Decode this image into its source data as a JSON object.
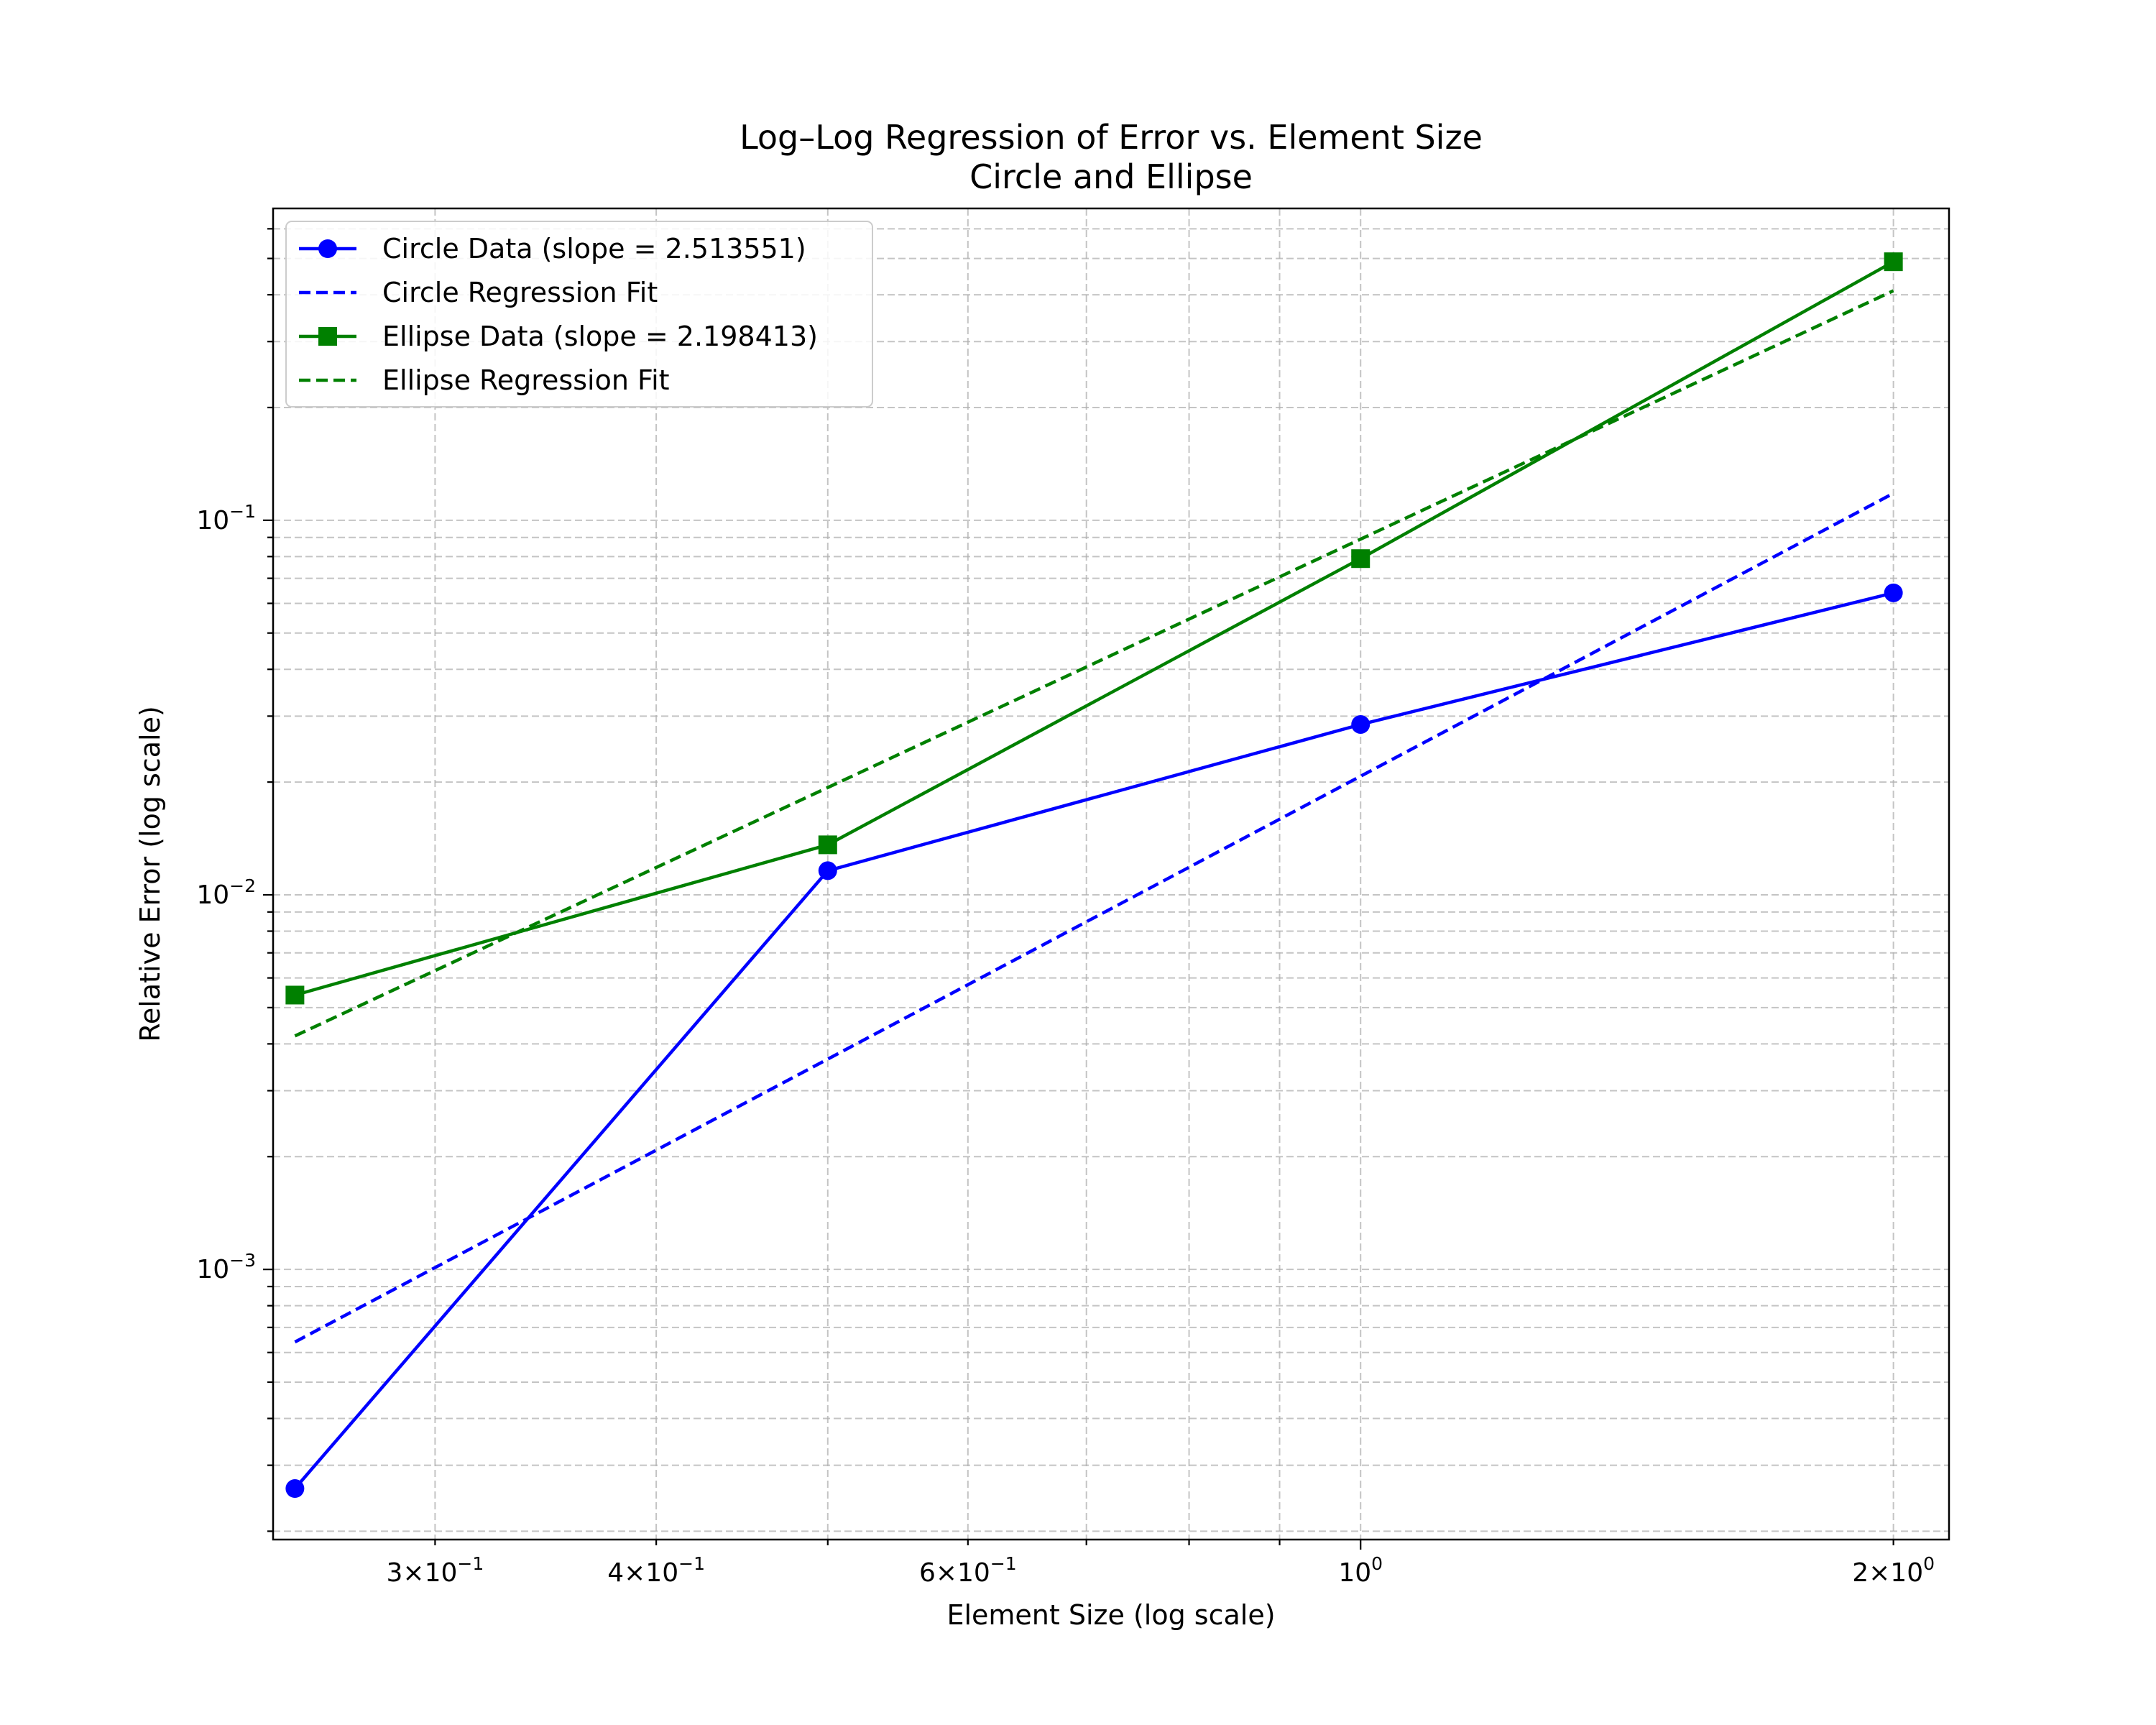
{
  "chart_data": {
    "type": "line",
    "title": "Log–Log Regression of Error vs. Element Size",
    "subtitle": "Circle and Ellipse",
    "xlabel": "Element Size (log scale)",
    "ylabel": "Relative Error (log scale)",
    "xscale": "log",
    "yscale": "log",
    "xlim": [
      0.243,
      2.15
    ],
    "ylim": [
      0.00019,
      0.68
    ],
    "grid": true,
    "legend_position": "top-left",
    "x_ticks": [
      {
        "value": 0.3,
        "base": "3×10",
        "exp": "−1"
      },
      {
        "value": 0.4,
        "base": "4×10",
        "exp": "−1"
      },
      {
        "value": 0.6,
        "base": "6×10",
        "exp": "−1"
      },
      {
        "value": 1.0,
        "base": "10",
        "exp": "0"
      },
      {
        "value": 2.0,
        "base": "2×10",
        "exp": "0"
      }
    ],
    "y_ticks": [
      {
        "value": 0.001,
        "base": "10",
        "exp": "−3"
      },
      {
        "value": 0.01,
        "base": "10",
        "exp": "−2"
      },
      {
        "value": 0.1,
        "base": "10",
        "exp": "−1"
      }
    ],
    "series": [
      {
        "name": "Circle Data (slope = 2.513551)",
        "color": "#0000ff",
        "style": "solid",
        "marker": "circle",
        "x": [
          0.25,
          0.5,
          1.0,
          2.0
        ],
        "y": [
          0.00026,
          0.0116,
          0.0285,
          0.064
        ]
      },
      {
        "name": "Circle Regression Fit",
        "color": "#0000ff",
        "style": "dashed",
        "marker": "none",
        "x": [
          0.25,
          2.0
        ],
        "y": [
          0.00064,
          0.118
        ]
      },
      {
        "name": "Ellipse Data (slope = 2.198413)",
        "color": "#008000",
        "style": "solid",
        "marker": "square",
        "x": [
          0.25,
          0.5,
          1.0,
          2.0
        ],
        "y": [
          0.0054,
          0.0136,
          0.079,
          0.49
        ]
      },
      {
        "name": "Ellipse Regression Fit",
        "color": "#008000",
        "style": "dashed",
        "marker": "none",
        "x": [
          0.25,
          2.0
        ],
        "y": [
          0.0042,
          0.41
        ]
      }
    ]
  }
}
